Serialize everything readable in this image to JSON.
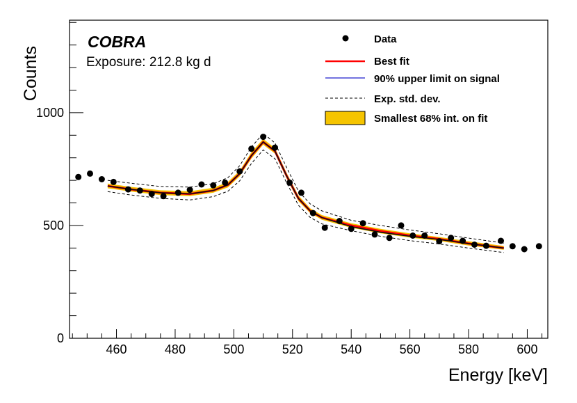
{
  "chart_data": {
    "type": "scatter",
    "annotation": {
      "experiment": "COBRA",
      "exposure": "Exposure: 212.8 kg d"
    },
    "xlabel": "Energy [keV]",
    "ylabel": "Counts",
    "xlim": [
      444,
      607
    ],
    "ylim": [
      0,
      1410
    ],
    "xticks": [
      460,
      480,
      500,
      520,
      540,
      560,
      580,
      600
    ],
    "yticks": [
      0,
      500,
      1000
    ],
    "legend": {
      "placement": "top-right",
      "entries": [
        "Data",
        "Best fit",
        "90% upper limit on signal",
        "Exp. std. dev.",
        "Smallest 68% int. on fit"
      ]
    },
    "colors": {
      "data": "#000000",
      "best_fit": "#ff0000",
      "upper_limit": "#1f1fcc",
      "std_dev": "#000000",
      "band": "#f5c400"
    },
    "series": [
      {
        "name": "Data",
        "kind": "points",
        "x": [
          447,
          451,
          455,
          459,
          464,
          468,
          472,
          476,
          481,
          485,
          489,
          493,
          497,
          502,
          506,
          510,
          514,
          519,
          523,
          527,
          531,
          536,
          540,
          544,
          548,
          553,
          557,
          561,
          565,
          570,
          574,
          578,
          582,
          586,
          591,
          595,
          599,
          604
        ],
        "y": [
          715,
          730,
          705,
          693,
          660,
          655,
          640,
          630,
          645,
          658,
          682,
          678,
          690,
          740,
          840,
          893,
          845,
          690,
          645,
          555,
          490,
          520,
          485,
          510,
          460,
          445,
          500,
          455,
          455,
          430,
          445,
          432,
          415,
          410,
          432,
          408,
          395,
          408
        ]
      },
      {
        "name": "Best fit",
        "kind": "line",
        "x": [
          457,
          465,
          475,
          485,
          493,
          498,
          502,
          506,
          510,
          514,
          518,
          522,
          526,
          530,
          540,
          550,
          560,
          570,
          580,
          592
        ],
        "y": [
          675,
          660,
          645,
          640,
          655,
          680,
          730,
          810,
          870,
          830,
          720,
          620,
          565,
          535,
          500,
          475,
          455,
          440,
          420,
          400
        ]
      },
      {
        "name": "90% upper limit on signal",
        "kind": "line",
        "x": [
          457,
          465,
          475,
          485,
          493,
          498,
          502,
          506,
          510,
          514,
          518,
          522,
          526,
          530,
          540,
          550,
          560,
          570,
          580,
          592
        ],
        "y": [
          675,
          660,
          645,
          640,
          655,
          680,
          730,
          810,
          870,
          830,
          720,
          620,
          565,
          535,
          495,
          470,
          452,
          438,
          420,
          400
        ]
      },
      {
        "name": "Exp. std. dev.",
        "kind": "dashed-pair",
        "x": [
          457,
          465,
          475,
          485,
          493,
          498,
          502,
          506,
          510,
          514,
          518,
          522,
          526,
          530,
          540,
          550,
          560,
          570,
          580,
          592
        ],
        "upper": [
          700,
          687,
          673,
          670,
          685,
          712,
          765,
          848,
          908,
          866,
          757,
          653,
          596,
          565,
          523,
          500,
          480,
          463,
          444,
          422
        ],
        "lower": [
          650,
          635,
          620,
          613,
          628,
          652,
          698,
          775,
          835,
          796,
          689,
          590,
          536,
          507,
          477,
          452,
          433,
          418,
          400,
          380
        ]
      },
      {
        "name": "Smallest 68% int. on fit",
        "kind": "band",
        "x": [
          457,
          465,
          475,
          485,
          493,
          498,
          502,
          506,
          510,
          514,
          518,
          522,
          526,
          530,
          540,
          550,
          560,
          570,
          580,
          592
        ],
        "upper": [
          686,
          671,
          656,
          652,
          667,
          693,
          743,
          825,
          884,
          843,
          733,
          633,
          576,
          546,
          510,
          485,
          465,
          449,
          430,
          409
        ],
        "lower": [
          665,
          650,
          635,
          630,
          645,
          669,
          718,
          797,
          858,
          819,
          708,
          608,
          555,
          525,
          490,
          465,
          446,
          431,
          411,
          392
        ]
      }
    ]
  }
}
